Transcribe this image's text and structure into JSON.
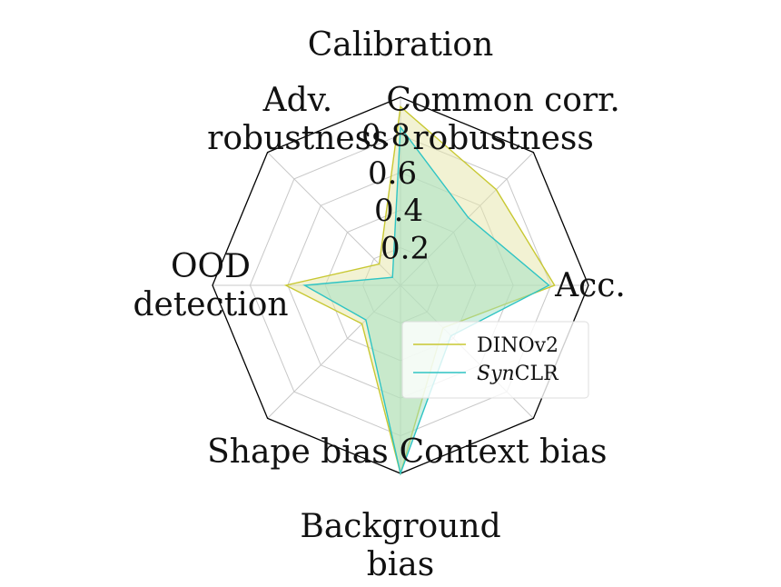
{
  "chart_data": {
    "type": "radar",
    "axes": [
      "Calibration",
      "Common corr. robustness",
      "Acc.",
      "Context bias",
      "Background bias",
      "Shape bias",
      "OOD detection",
      "Adv. robustness"
    ],
    "axis_label_lines": [
      [
        "Calibration"
      ],
      [
        "Common corr.",
        "robustness"
      ],
      [
        "Acc."
      ],
      [
        "Context bias"
      ],
      [
        "Background",
        "bias"
      ],
      [
        "Shape bias"
      ],
      [
        "OOD",
        "detection"
      ],
      [
        "Adv.",
        "robustness"
      ]
    ],
    "rticks": [
      0.2,
      0.4,
      0.6,
      0.8
    ],
    "rticks_labels": [
      "0.2",
      "0.4",
      "0.6",
      "0.8"
    ],
    "rlim": [
      0,
      1.0
    ],
    "grid": true,
    "series": [
      {
        "name": "DINOv2",
        "name_parts": [
          {
            "text": "DINOv2",
            "italic": false
          }
        ],
        "values": [
          0.95,
          0.72,
          0.82,
          0.32,
          1.0,
          0.29,
          0.61,
          0.16
        ],
        "color": "#c8c832",
        "fill": "#e6e6a8"
      },
      {
        "name": "SynCLR",
        "name_parts": [
          {
            "text": "Syn",
            "italic": true
          },
          {
            "text": "CLR",
            "italic": false
          }
        ],
        "values": [
          0.84,
          0.51,
          0.79,
          0.38,
          1.0,
          0.26,
          0.51,
          0.06
        ],
        "color": "#2ec4c4",
        "fill": "#9ee0c4"
      }
    ],
    "legend_placement": "lower-right"
  }
}
